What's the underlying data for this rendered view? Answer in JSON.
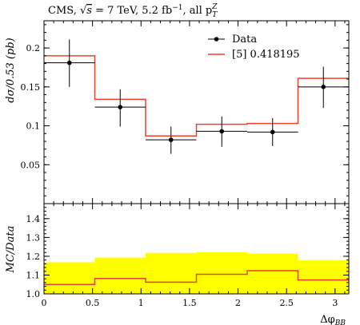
{
  "header": {
    "prefix": "CMS, ",
    "sqrt_s": "s",
    "energy": " = 7 TeV, 5.2 fb",
    "lumi_exp": "−1",
    "rest": ", all p",
    "sub": "T",
    "sup": "Z"
  },
  "chart_data": [
    {
      "type": "histogram",
      "panel": "main",
      "ylabel": "dσ/0.53 (pb)",
      "ylim": [
        0,
        0.235
      ],
      "xlim": [
        0,
        3.14159
      ],
      "x_edges": [
        0,
        0.5236,
        1.0472,
        1.5708,
        2.0944,
        2.618,
        3.1416
      ],
      "y_ticks": [
        "0.05",
        "0.1",
        "0.15",
        "0.2"
      ],
      "y_tick_values": [
        0.05,
        0.1,
        0.15,
        0.2
      ],
      "series": [
        {
          "name": "Data",
          "kind": "points",
          "color": "#000000",
          "x": [
            0.2618,
            0.7854,
            1.309,
            1.8326,
            2.3562,
            2.8798
          ],
          "values": [
            0.181,
            0.124,
            0.082,
            0.093,
            0.092,
            0.15
          ],
          "err_low": [
            0.031,
            0.025,
            0.018,
            0.02,
            0.018,
            0.027
          ],
          "err_high": [
            0.03,
            0.023,
            0.017,
            0.019,
            0.018,
            0.026
          ]
        },
        {
          "name": "[5] 0.418195",
          "kind": "step",
          "color": "#e8432a",
          "values": [
            0.19,
            0.134,
            0.087,
            0.102,
            0.103,
            0.161
          ]
        }
      ],
      "legend": {
        "position": "top-right",
        "entries": [
          "Data",
          "[5] 0.418195"
        ]
      }
    },
    {
      "type": "histogram",
      "panel": "ratio",
      "ylabel": "MC/Data",
      "xlabel": "Δφ_BB",
      "xlabel_main": "Δφ",
      "xlabel_sub": "BB",
      "ylim": [
        1.0,
        1.48
      ],
      "xlim": [
        0,
        3.14159
      ],
      "x_edges": [
        0,
        0.5236,
        1.0472,
        1.5708,
        2.0944,
        2.618,
        3.1416
      ],
      "x_ticks": [
        "0",
        "0.5",
        "1",
        "1.5",
        "2",
        "2.5",
        "3"
      ],
      "x_tick_values": [
        0,
        0.5,
        1,
        1.5,
        2,
        2.5,
        3
      ],
      "y_ticks": [
        "1.0",
        "1.1",
        "1.2",
        "1.3",
        "1.4"
      ],
      "y_tick_values": [
        1.0,
        1.1,
        1.2,
        1.3,
        1.4
      ],
      "band": {
        "color": "#ffff00",
        "upper": [
          1.168,
          1.193,
          1.218,
          1.222,
          1.214,
          1.178
        ],
        "lower": [
          1.0,
          1.0,
          1.0,
          1.0,
          1.0,
          1.0
        ]
      },
      "ratio_line": {
        "color": "#e8432a",
        "values": [
          1.05,
          1.082,
          1.062,
          1.104,
          1.123,
          1.074
        ]
      }
    }
  ]
}
